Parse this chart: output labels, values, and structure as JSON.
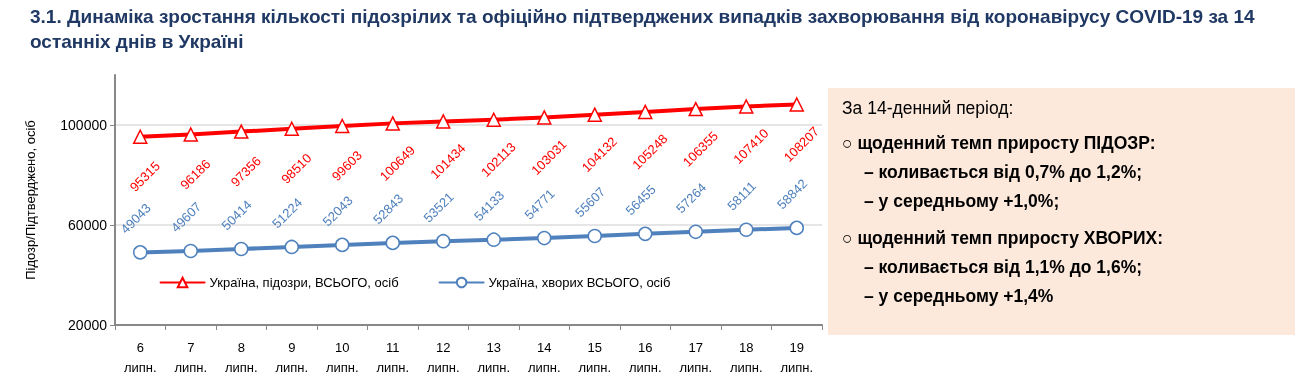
{
  "chart_data": {
    "type": "line",
    "title": "3.1.  Динаміка зростання кількості підозрілих та офіційно підтверджених випадків захворювання від коронавірусу COVID-19 за 14 останніх днів в Україні",
    "ylabel": "Підозр/Підтверджено, осіб",
    "categories": [
      "6 липн.",
      "7 липн.",
      "8 липн.",
      "9 липн.",
      "10 липн.",
      "11 липн.",
      "12 липн.",
      "13 липн.",
      "14 липн.",
      "15 липн.",
      "16 липн.",
      "17 липн.",
      "18 липн.",
      "19 липн."
    ],
    "series": [
      {
        "name": "Україна, підозри, ВСЬОГО, осіб",
        "color": "#ff0000",
        "marker": "triangle",
        "values": [
          95315,
          96186,
          97356,
          98510,
          99603,
          100649,
          101434,
          102113,
          103031,
          104132,
          105248,
          106355,
          107410,
          108207
        ]
      },
      {
        "name": "Україна, хворих ВСЬОГО, осіб",
        "color": "#4f81bd",
        "marker": "circle",
        "values": [
          49043,
          49607,
          50414,
          51224,
          52043,
          52843,
          53521,
          54133,
          54771,
          55607,
          56455,
          57264,
          58111,
          58842
        ]
      }
    ],
    "ylim": [
      20000,
      120000
    ],
    "yticks": [
      20000,
      60000,
      100000
    ],
    "grid": "y",
    "legend": "bottom",
    "data_labels": true,
    "annotations": [
      "За 14-денний період:",
      "○  щоденний темп приросту ПІДОЗР:",
      "–  коливається від 0,7% до 1,2%;",
      "–  у середньому +1,0%;",
      "○      щоденний темп приросту ХВОРИХ:",
      "–  коливається від 1,1% до 1,6%;",
      "–  у середньому +1,4%"
    ]
  }
}
